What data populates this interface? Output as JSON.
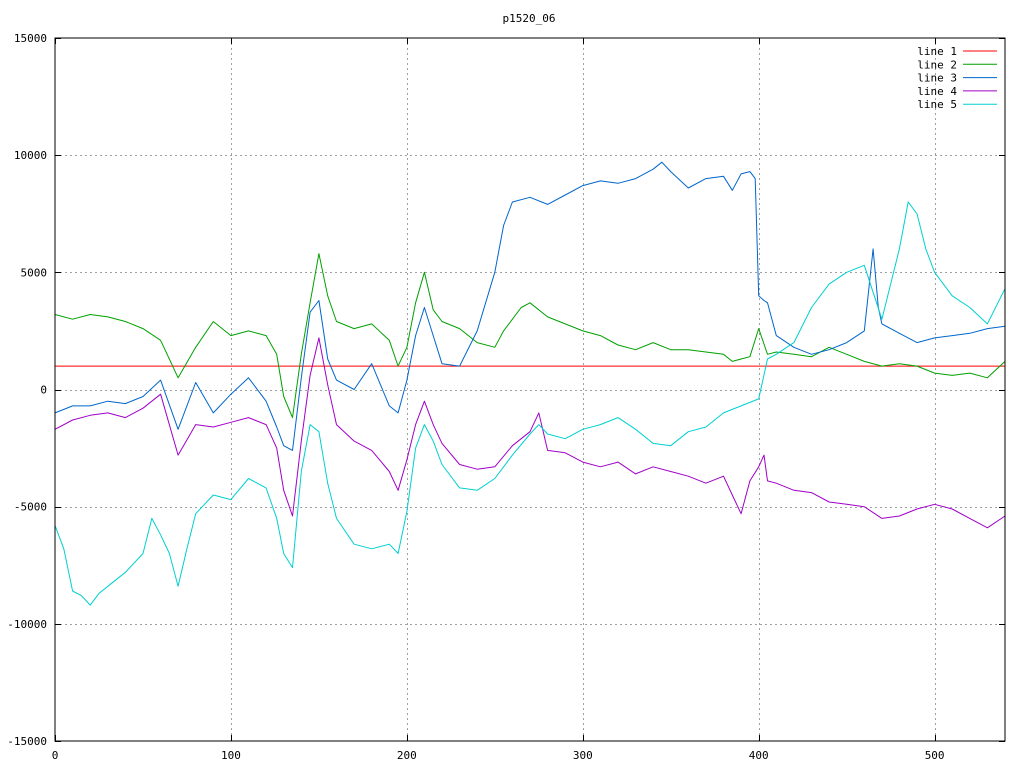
{
  "chart_data": {
    "type": "line",
    "title": "p1520_06",
    "xlabel": "",
    "ylabel": "",
    "xlim": [
      0,
      540
    ],
    "ylim": [
      -15000,
      15000
    ],
    "xticks": [
      0,
      100,
      200,
      300,
      400,
      500
    ],
    "yticks": [
      -15000,
      -10000,
      -5000,
      0,
      5000,
      10000,
      15000
    ],
    "grid": true,
    "legend_position": "top-right",
    "series": [
      {
        "name": "line 1",
        "color": "#ff0000",
        "x": [
          0,
          540
        ],
        "y": [
          1000,
          1000
        ]
      },
      {
        "name": "line 2",
        "color": "#00a000",
        "x": [
          0,
          10,
          20,
          30,
          40,
          50,
          60,
          70,
          80,
          90,
          100,
          110,
          120,
          126,
          130,
          135,
          140,
          145,
          150,
          155,
          160,
          170,
          180,
          190,
          195,
          200,
          205,
          210,
          215,
          220,
          230,
          240,
          250,
          255,
          260,
          265,
          270,
          280,
          290,
          300,
          310,
          320,
          330,
          340,
          350,
          360,
          370,
          380,
          385,
          390,
          395,
          400,
          405,
          410,
          420,
          430,
          440,
          450,
          460,
          470,
          480,
          490,
          500,
          510,
          520,
          530,
          540
        ],
        "y": [
          3200,
          3000,
          3200,
          3100,
          2900,
          2600,
          2100,
          500,
          1800,
          2900,
          2300,
          2500,
          2300,
          1500,
          -300,
          -1200,
          1500,
          3700,
          5800,
          4000,
          2900,
          2600,
          2800,
          2100,
          1000,
          1800,
          3700,
          5000,
          3400,
          2900,
          2600,
          2000,
          1800,
          2500,
          3000,
          3500,
          3700,
          3100,
          2800,
          2500,
          2300,
          1900,
          1700,
          2000,
          1700,
          1700,
          1600,
          1500,
          1200,
          1300,
          1400,
          2600,
          1500,
          1600,
          1500,
          1400,
          1800,
          1500,
          1200,
          1000,
          1100,
          1000,
          700,
          600,
          700,
          500,
          1200
        ]
      },
      {
        "name": "line 3",
        "color": "#0066cc",
        "x": [
          0,
          10,
          20,
          30,
          40,
          50,
          60,
          70,
          80,
          90,
          100,
          110,
          120,
          126,
          130,
          135,
          140,
          145,
          150,
          155,
          160,
          170,
          180,
          190,
          195,
          200,
          205,
          210,
          215,
          220,
          230,
          240,
          250,
          255,
          260,
          270,
          280,
          290,
          300,
          310,
          320,
          330,
          340,
          345,
          350,
          360,
          370,
          380,
          385,
          390,
          395,
          398,
          400,
          403,
          405,
          410,
          420,
          430,
          440,
          450,
          460,
          465,
          468,
          470,
          480,
          490,
          500,
          510,
          520,
          530,
          540
        ],
        "y": [
          -1000,
          -700,
          -700,
          -500,
          -600,
          -300,
          400,
          -1700,
          300,
          -1000,
          -200,
          500,
          -500,
          -1600,
          -2400,
          -2600,
          500,
          3300,
          3800,
          1300,
          400,
          0,
          1100,
          -700,
          -1000,
          400,
          2300,
          3500,
          2300,
          1100,
          1000,
          2500,
          5000,
          7000,
          8000,
          8200,
          7900,
          8300,
          8700,
          8900,
          8800,
          9000,
          9400,
          9700,
          9300,
          8600,
          9000,
          9100,
          8500,
          9200,
          9300,
          9000,
          4000,
          3800,
          3700,
          2300,
          1800,
          1500,
          1700,
          2000,
          2500,
          6000,
          3500,
          2800,
          2400,
          2000,
          2200,
          2300,
          2400,
          2600,
          2700
        ]
      },
      {
        "name": "line 4",
        "color": "#a000c8",
        "x": [
          0,
          10,
          20,
          30,
          40,
          50,
          60,
          70,
          80,
          90,
          100,
          110,
          120,
          126,
          130,
          135,
          140,
          145,
          150,
          155,
          160,
          170,
          180,
          190,
          195,
          200,
          205,
          210,
          215,
          220,
          230,
          240,
          250,
          260,
          270,
          275,
          280,
          290,
          300,
          310,
          320,
          330,
          340,
          350,
          360,
          370,
          380,
          385,
          390,
          395,
          400,
          403,
          405,
          410,
          420,
          430,
          440,
          450,
          460,
          470,
          480,
          490,
          500,
          510,
          520,
          530,
          540
        ],
        "y": [
          -1700,
          -1300,
          -1100,
          -1000,
          -1200,
          -800,
          -200,
          -2800,
          -1500,
          -1600,
          -1400,
          -1200,
          -1500,
          -2500,
          -4300,
          -5400,
          -2200,
          600,
          2200,
          200,
          -1500,
          -2200,
          -2600,
          -3500,
          -4300,
          -3000,
          -1500,
          -500,
          -1500,
          -2300,
          -3200,
          -3400,
          -3300,
          -2400,
          -1800,
          -1000,
          -2600,
          -2700,
          -3100,
          -3300,
          -3100,
          -3600,
          -3300,
          -3500,
          -3700,
          -4000,
          -3700,
          -4500,
          -5300,
          -3900,
          -3300,
          -2800,
          -3900,
          -4000,
          -4300,
          -4400,
          -4800,
          -4900,
          -5000,
          -5500,
          -5400,
          -5100,
          -4900,
          -5100,
          -5500,
          -5900,
          -5400
        ]
      },
      {
        "name": "line 5",
        "color": "#00d0d0",
        "x": [
          0,
          5,
          10,
          15,
          20,
          25,
          30,
          40,
          50,
          55,
          60,
          65,
          70,
          75,
          80,
          90,
          100,
          110,
          120,
          126,
          130,
          135,
          140,
          145,
          150,
          155,
          160,
          170,
          180,
          190,
          195,
          200,
          205,
          210,
          215,
          220,
          230,
          240,
          250,
          260,
          270,
          275,
          280,
          290,
          300,
          310,
          320,
          330,
          340,
          350,
          360,
          370,
          380,
          390,
          400,
          405,
          410,
          420,
          430,
          440,
          450,
          460,
          470,
          480,
          485,
          490,
          495,
          500,
          510,
          520,
          530,
          540
        ],
        "y": [
          -5800,
          -6800,
          -8600,
          -8800,
          -9200,
          -8700,
          -8400,
          -7800,
          -7000,
          -5500,
          -6200,
          -7000,
          -8400,
          -6800,
          -5300,
          -4500,
          -4700,
          -3800,
          -4200,
          -5500,
          -7000,
          -7600,
          -3500,
          -1500,
          -1800,
          -4000,
          -5500,
          -6600,
          -6800,
          -6600,
          -7000,
          -5200,
          -2500,
          -1500,
          -2200,
          -3200,
          -4200,
          -4300,
          -3800,
          -2800,
          -1900,
          -1500,
          -1900,
          -2100,
          -1700,
          -1500,
          -1200,
          -1700,
          -2300,
          -2400,
          -1800,
          -1600,
          -1000,
          -700,
          -400,
          1300,
          1500,
          2000,
          3500,
          4500,
          5000,
          5300,
          3000,
          6000,
          8000,
          7500,
          6000,
          5000,
          4000,
          3500,
          2800,
          4300
        ]
      }
    ]
  }
}
